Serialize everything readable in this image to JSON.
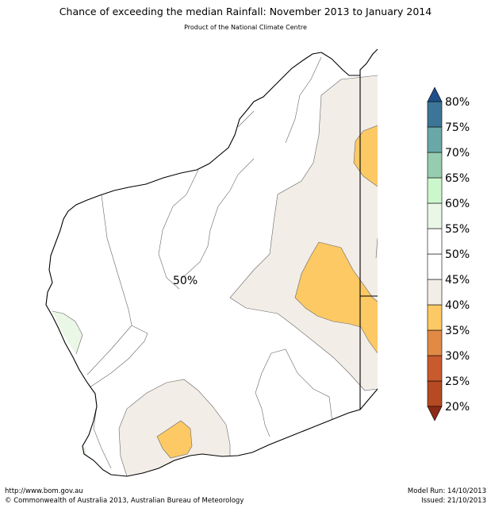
{
  "title": "Chance of exceeding the median Rainfall: November 2013 to January 2014",
  "subtitle": "Product of the National Climate Centre",
  "map": {
    "contour_label": "50%"
  },
  "legend": {
    "levels": [
      {
        "label": "20%",
        "color": "#b54a23"
      },
      {
        "label": "25%",
        "color": "#c95a2e"
      },
      {
        "label": "30%",
        "color": "#e08a45"
      },
      {
        "label": "35%",
        "color": "#fdc964"
      },
      {
        "label": "40%",
        "color": "#f2ede7"
      },
      {
        "label": "45%",
        "color": "#ffffff"
      },
      {
        "label": "50%",
        "color": "#ffffff"
      },
      {
        "label": "55%",
        "color": "#ebf7e6"
      },
      {
        "label": "60%",
        "color": "#ccf7cc"
      },
      {
        "label": "65%",
        "color": "#96cdb0"
      },
      {
        "label": "70%",
        "color": "#6aa8a8"
      },
      {
        "label": "75%",
        "color": "#3d7597"
      },
      {
        "label": "80%",
        "color": "#1f4f88"
      }
    ],
    "bottom_arrow_color": "#8b2a16",
    "top_arrow_color": "#1f4f88"
  },
  "colors": {
    "below_40": "#fdc964",
    "40_45": "#f2ede7",
    "55_60": "#ebf7e6"
  },
  "footer": {
    "url": "http://www.bom.gov.au",
    "copyright": "©  Commonwealth of Australia 2013, Australian Bureau of Meteorology",
    "model_run": "Model Run: 14/10/2013",
    "issued": "Issued: 21/10/2013"
  }
}
